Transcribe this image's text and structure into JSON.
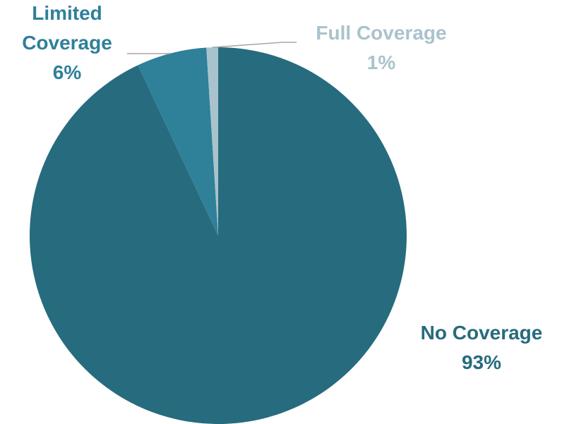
{
  "chart_data": {
    "type": "pie",
    "slices": [
      {
        "label": "No Coverage",
        "display_label": [
          "No Coverage"
        ],
        "value": 93,
        "percent_text": "93%",
        "color": "#276b7e",
        "label_color": "#276b7e"
      },
      {
        "label": "Limited Coverage",
        "display_label": [
          "Limited",
          "Coverage"
        ],
        "value": 6,
        "percent_text": "6%",
        "color": "#2f8099",
        "label_color": "#2f8099"
      },
      {
        "label": "Full Coverage",
        "display_label": [
          "Full Coverage"
        ],
        "value": 1,
        "percent_text": "1%",
        "color": "#a9c3cc",
        "label_color": "#a9c3cc"
      }
    ],
    "leader_line_color": "#a6a6a6",
    "legend": "none"
  }
}
